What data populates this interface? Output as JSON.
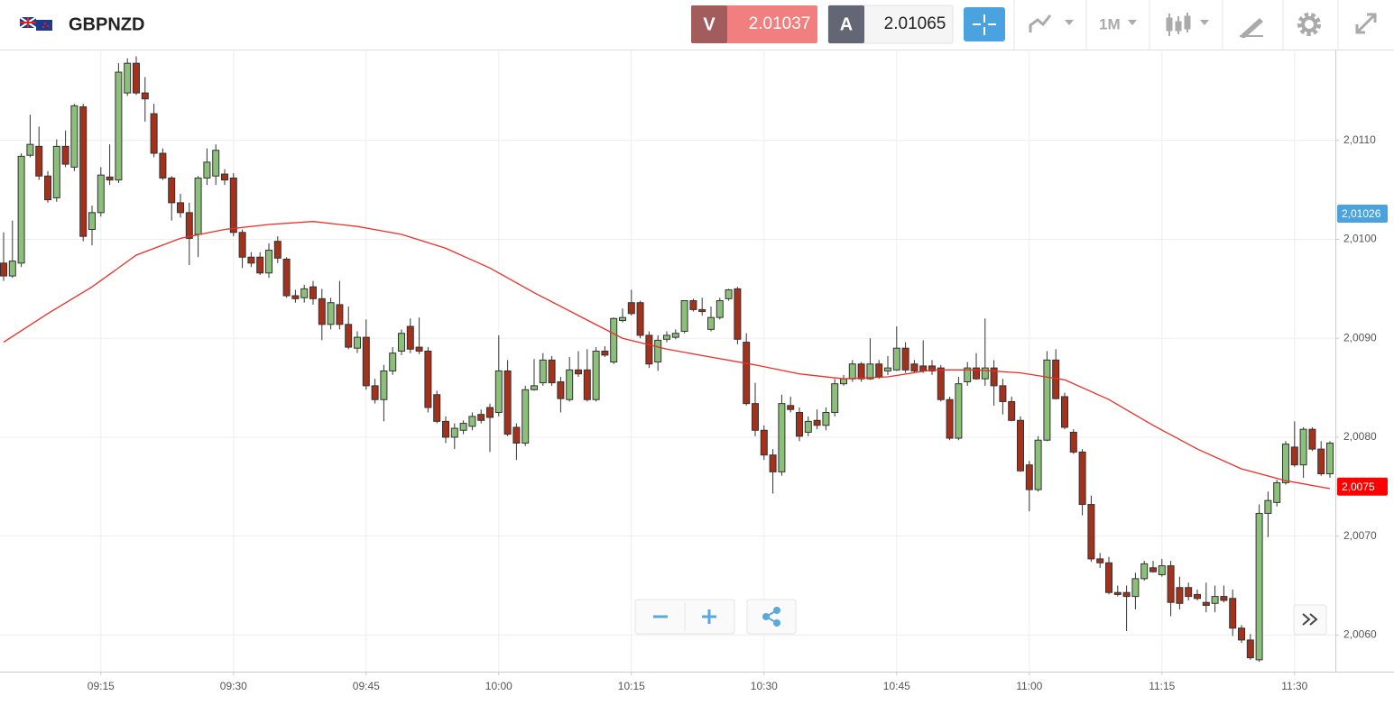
{
  "header": {
    "symbol": "GBPNZD",
    "sell": {
      "label": "V",
      "price": "2.01037"
    },
    "buy": {
      "label": "A",
      "price": "2.01065"
    },
    "timeframe": "1M"
  },
  "chart_data": {
    "type": "candlestick",
    "x": [
      "09:04",
      "09:05",
      "09:06",
      "09:07",
      "09:08",
      "09:09",
      "09:10",
      "09:11",
      "09:12",
      "09:13",
      "09:14",
      "09:15",
      "09:16",
      "09:17",
      "09:18",
      "09:19",
      "09:20",
      "09:21",
      "09:22",
      "09:23",
      "09:24",
      "09:25",
      "09:26",
      "09:27",
      "09:28",
      "09:29",
      "09:30",
      "09:31",
      "09:32",
      "09:33",
      "09:34",
      "09:35",
      "09:36",
      "09:37",
      "09:38",
      "09:39",
      "09:40",
      "09:41",
      "09:42",
      "09:43",
      "09:44",
      "09:45",
      "09:46",
      "09:47",
      "09:48",
      "09:49",
      "09:50",
      "09:51",
      "09:52",
      "09:53",
      "09:54",
      "09:55",
      "09:56",
      "09:57",
      "09:58",
      "09:59",
      "10:00",
      "10:01",
      "10:02",
      "10:03",
      "10:04",
      "10:05",
      "10:06",
      "10:07",
      "10:08",
      "10:09",
      "10:10",
      "10:11",
      "10:12",
      "10:13",
      "10:14",
      "10:15",
      "10:16",
      "10:17",
      "10:18",
      "10:19",
      "10:20",
      "10:21",
      "10:22",
      "10:23",
      "10:24",
      "10:25",
      "10:26",
      "10:27",
      "10:28",
      "10:29",
      "10:30",
      "10:31",
      "10:32",
      "10:33",
      "10:34",
      "10:35",
      "10:36",
      "10:37",
      "10:38",
      "10:39",
      "10:40",
      "10:41",
      "10:42",
      "10:43",
      "10:44",
      "10:45",
      "10:46",
      "10:47",
      "10:48",
      "10:49",
      "10:50",
      "10:51",
      "10:52",
      "10:53",
      "10:54",
      "10:55",
      "10:56",
      "10:57",
      "10:58",
      "10:59",
      "11:00",
      "11:01",
      "11:02",
      "11:03",
      "11:04",
      "11:05",
      "11:06",
      "11:07",
      "11:08",
      "11:09",
      "11:10",
      "11:11",
      "11:12",
      "11:13",
      "11:14",
      "11:15",
      "11:16",
      "11:17",
      "11:18",
      "11:19",
      "11:20",
      "11:21",
      "11:22",
      "11:23",
      "11:24",
      "11:25",
      "11:26",
      "11:27",
      "11:28",
      "11:29",
      "11:30",
      "11:31",
      "11:32",
      "11:33",
      "11:34"
    ],
    "open": [
      2.00976,
      2.00963,
      2.00976,
      2.01085,
      2.01094,
      2.01064,
      2.01042,
      2.01094,
      2.01073,
      2.01134,
      2.0101,
      2.01027,
      2.01063,
      2.0106,
      2.01148,
      2.01178,
      2.01148,
      2.01127,
      2.01087,
      2.01062,
      2.01037,
      2.01027,
      2.01005,
      2.01062,
      2.01064,
      2.01066,
      2.01062,
      2.01007,
      2.00982,
      2.00982,
      2.00966,
      2.00998,
      2.0098,
      2.00943,
      2.00941,
      2.00952,
      2.0094,
      2.00914,
      2.00934,
      2.00914,
      2.0089,
      2.00901,
      2.00852,
      2.00838,
      2.00867,
      2.00887,
      2.00912,
      2.00891,
      2.00887,
      2.00843,
      2.00816,
      2.008,
      2.00807,
      2.00811,
      2.00823,
      2.0083,
      2.00825,
      2.00867,
      2.0081,
      2.00794,
      2.00848,
      2.00855,
      2.00878,
      2.00856,
      2.00838,
      2.00868,
      2.00868,
      2.00838,
      2.00887,
      2.00876,
      2.00918,
      2.00936,
      2.00936,
      2.00903,
      2.00876,
      2.00899,
      2.00901,
      2.00907,
      2.00938,
      2.00929,
      2.00909,
      2.00921,
      2.0094,
      2.0095,
      2.00896,
      2.00834,
      2.00807,
      2.00782,
      2.00765,
      2.00832,
      2.00825,
      2.00805,
      2.00817,
      2.00812,
      2.00825,
      2.00854,
      2.00859,
      2.00874,
      2.00859,
      2.00874,
      2.00867,
      2.00868,
      2.0089,
      2.00874,
      2.00872,
      2.00872,
      2.0087,
      2.00838,
      2.00799,
      2.00856,
      2.0087,
      2.00859,
      2.0087,
      2.00852,
      2.00836,
      2.00817,
      2.00772,
      2.00747,
      2.00797,
      2.00878,
      2.00841,
      2.00805,
      2.00785,
      2.00732,
      2.00677,
      2.00673,
      2.00643,
      2.00643,
      2.00639,
      2.00657,
      2.00668,
      2.00661,
      2.0067,
      2.00648,
      2.00648,
      2.00641,
      2.00633,
      2.00632,
      2.00639,
      2.00637,
      2.00607,
      2.00595,
      2.00575,
      2.00723,
      2.00734,
      2.00754,
      2.0079,
      2.00772,
      2.00808,
      2.00788,
      2.00763
    ],
    "high": [
      2.01007,
      2.01019,
      2.01087,
      2.01126,
      2.01114,
      2.01069,
      2.01101,
      2.0111,
      2.01137,
      2.01137,
      2.01034,
      2.01073,
      2.01096,
      2.01178,
      2.01183,
      2.01185,
      2.01164,
      2.01137,
      2.01092,
      2.01064,
      2.01046,
      2.01037,
      2.01064,
      2.01092,
      2.01096,
      2.01071,
      2.01067,
      2.0101,
      2.00987,
      2.00987,
      2.00996,
      2.01003,
      2.00982,
      2.00949,
      2.00954,
      2.00958,
      2.0095,
      2.00941,
      2.00958,
      2.00932,
      2.00907,
      2.00919,
      2.00859,
      2.00873,
      2.00891,
      2.00909,
      2.0092,
      2.00921,
      2.00891,
      2.00847,
      2.00821,
      2.00814,
      2.00817,
      2.00825,
      2.00828,
      2.00834,
      2.00903,
      2.00878,
      2.00814,
      2.00852,
      2.00879,
      2.00885,
      2.00882,
      2.00861,
      2.00881,
      2.00887,
      2.00889,
      2.00891,
      2.00892,
      2.00921,
      2.0093,
      2.00949,
      2.00938,
      2.00907,
      2.00903,
      2.00907,
      2.00909,
      2.00938,
      2.0094,
      2.00941,
      2.00932,
      2.00941,
      2.0095,
      2.00952,
      2.00905,
      2.00855,
      2.00812,
      2.00788,
      2.00843,
      2.00841,
      2.0083,
      2.00821,
      2.00828,
      2.0083,
      2.00859,
      2.00863,
      2.00878,
      2.00876,
      2.009,
      2.00878,
      2.00882,
      2.00912,
      2.00896,
      2.00878,
      2.00898,
      2.00878,
      2.00873,
      2.00841,
      2.00861,
      2.00876,
      2.00885,
      2.0092,
      2.00878,
      2.00859,
      2.00841,
      2.00821,
      2.00776,
      2.00801,
      2.00887,
      2.00889,
      2.00845,
      2.00808,
      2.00788,
      2.00741,
      2.00683,
      2.00679,
      2.0065,
      2.0065,
      2.00663,
      2.00675,
      2.00675,
      2.00677,
      2.00675,
      2.00659,
      2.00653,
      2.00646,
      2.00653,
      2.0065,
      2.0065,
      2.00646,
      2.0061,
      2.00601,
      2.00732,
      2.00745,
      2.00757,
      2.00796,
      2.00816,
      2.0081,
      2.0081,
      2.00796,
      2.00796
    ],
    "low": [
      2.00958,
      2.00961,
      2.00972,
      2.01083,
      2.0106,
      2.01037,
      2.01038,
      2.01073,
      2.01069,
      2.00998,
      2.00994,
      2.01023,
      2.01055,
      2.01057,
      2.01145,
      2.01146,
      2.01119,
      2.01083,
      2.0106,
      2.01019,
      2.01022,
      2.00974,
      2.00982,
      2.01055,
      2.01055,
      2.01055,
      2.01003,
      2.00971,
      2.00972,
      2.00964,
      2.00961,
      2.00976,
      2.00941,
      2.00936,
      2.00936,
      2.00934,
      2.00898,
      2.00909,
      2.00909,
      2.00889,
      2.00885,
      2.00848,
      2.00834,
      2.00816,
      2.00863,
      2.00883,
      2.00885,
      2.00884,
      2.00825,
      2.00814,
      2.00794,
      2.00788,
      2.00803,
      2.00807,
      2.00814,
      2.00785,
      2.00821,
      2.00801,
      2.00777,
      2.00791,
      2.00847,
      2.00852,
      2.00852,
      2.00825,
      2.00836,
      2.00861,
      2.00836,
      2.00836,
      2.00881,
      2.00874,
      2.00916,
      2.00923,
      2.009,
      2.0087,
      2.00867,
      2.00896,
      2.00899,
      2.00905,
      2.00927,
      2.00923,
      2.00907,
      2.00919,
      2.00938,
      2.00894,
      2.00832,
      2.00801,
      2.00777,
      2.00743,
      2.00761,
      2.00825,
      2.00796,
      2.00801,
      2.00808,
      2.00807,
      2.00821,
      2.00852,
      2.00856,
      2.00856,
      2.00858,
      2.00859,
      2.00863,
      2.00867,
      2.00865,
      2.00865,
      2.00865,
      2.00863,
      2.00836,
      2.00797,
      2.00797,
      2.00852,
      2.00858,
      2.00852,
      2.00832,
      2.00823,
      2.00816,
      2.00765,
      2.00725,
      2.00745,
      2.00796,
      2.00838,
      2.00808,
      2.00783,
      2.00721,
      2.00674,
      2.00668,
      2.00641,
      2.00639,
      2.00604,
      2.00626,
      2.00655,
      2.00663,
      2.00659,
      2.00619,
      2.00626,
      2.00635,
      2.00635,
      2.00623,
      2.00623,
      2.00633,
      2.00599,
      2.00592,
      2.00575,
      2.00573,
      2.00699,
      2.0073,
      2.00752,
      2.0077,
      2.00759,
      2.00786,
      2.00761,
      2.00759
    ],
    "close": [
      2.00963,
      2.00978,
      2.01084,
      2.01096,
      2.01064,
      2.0104,
      2.01094,
      2.01076,
      2.01135,
      2.01003,
      2.01027,
      2.01065,
      2.0106,
      2.01169,
      2.01178,
      2.01148,
      2.01142,
      2.01087,
      2.01062,
      2.01037,
      2.01027,
      2.01001,
      2.01062,
      2.01078,
      2.0109,
      2.0106,
      2.01007,
      2.00982,
      2.00976,
      2.00966,
      2.00989,
      2.00981,
      2.00943,
      2.0094,
      2.0095,
      2.0094,
      2.00914,
      2.00936,
      2.00914,
      2.00891,
      2.00901,
      2.00852,
      2.00838,
      2.00867,
      2.00885,
      2.00905,
      2.00889,
      2.00887,
      2.0083,
      2.00816,
      2.008,
      2.00809,
      2.00814,
      2.00821,
      2.00817,
      2.0082,
      2.00867,
      2.00803,
      2.00794,
      2.00848,
      2.00852,
      2.00878,
      2.00855,
      2.00839,
      2.00868,
      2.00864,
      2.00838,
      2.00887,
      2.00883,
      2.0092,
      2.00921,
      2.00925,
      2.00903,
      2.00874,
      2.00898,
      2.00903,
      2.00905,
      2.00938,
      2.00929,
      2.00927,
      2.00921,
      2.00938,
      2.00949,
      2.00899,
      2.00834,
      2.00807,
      2.00782,
      2.00765,
      2.00834,
      2.00828,
      2.00801,
      2.00816,
      2.00812,
      2.00825,
      2.00854,
      2.00859,
      2.00874,
      2.00859,
      2.00874,
      2.00861,
      2.0087,
      2.0089,
      2.00868,
      2.00867,
      2.00867,
      2.00867,
      2.00838,
      2.00799,
      2.00854,
      2.0087,
      2.00859,
      2.0087,
      2.00852,
      2.00836,
      2.00817,
      2.00766,
      2.00747,
      2.00797,
      2.00878,
      2.00839,
      2.0081,
      2.00785,
      2.00732,
      2.00677,
      2.00673,
      2.00643,
      2.00641,
      2.00639,
      2.00657,
      2.00672,
      2.00664,
      2.0067,
      2.00633,
      2.00632,
      2.00639,
      2.00637,
      2.0063,
      2.00639,
      2.00635,
      2.00607,
      2.00595,
      2.00577,
      2.00723,
      2.00736,
      2.00754,
      2.00793,
      2.00772,
      2.00808,
      2.00788,
      2.00763,
      2.00794
    ],
    "up_color": "#8cbf7a",
    "down_color": "#a3311c",
    "moving_average": {
      "color": "#e8302a",
      "x": [
        "09:04",
        "09:09",
        "09:14",
        "09:19",
        "09:24",
        "09:29",
        "09:34",
        "09:39",
        "09:44",
        "09:49",
        "09:54",
        "09:59",
        "10:04",
        "10:09",
        "10:14",
        "10:19",
        "10:24",
        "10:29",
        "10:34",
        "10:39",
        "10:44",
        "10:49",
        "10:54",
        "10:59",
        "11:04",
        "11:09",
        "11:14",
        "11:19",
        "11:24",
        "11:29",
        "11:34"
      ],
      "values": [
        2.00896,
        2.00925,
        2.00952,
        2.00984,
        2.01001,
        2.0101,
        2.01015,
        2.01018,
        2.01013,
        2.01005,
        2.00991,
        2.00971,
        2.00946,
        2.00923,
        2.009,
        2.00889,
        2.00881,
        2.00873,
        2.00864,
        2.00859,
        2.00861,
        2.00868,
        2.00868,
        2.00865,
        2.00858,
        2.00838,
        2.00812,
        2.00788,
        2.00768,
        2.00756,
        2.00748
      ]
    },
    "ylim": [
      2.00563,
      2.0119
    ],
    "yticks": [
      {
        "value": 2.006,
        "label": "2,0060"
      },
      {
        "value": 2.007,
        "label": "2,0070"
      },
      {
        "value": 2.008,
        "label": "2,0080"
      },
      {
        "value": 2.009,
        "label": "2,0090"
      },
      {
        "value": 2.01,
        "label": "2,0100"
      },
      {
        "value": 2.011,
        "label": "2,0110"
      }
    ],
    "xticks": [
      "09:15",
      "09:30",
      "09:45",
      "10:00",
      "10:15",
      "10:30",
      "10:45",
      "11:00",
      "11:15",
      "11:30"
    ],
    "grid": true,
    "price_markers": [
      {
        "value": 2.01026,
        "label": "2,01026",
        "color": "#4aa3df"
      },
      {
        "value": 2.0075,
        "label": "2,0075",
        "color": "#ff0000"
      }
    ]
  }
}
